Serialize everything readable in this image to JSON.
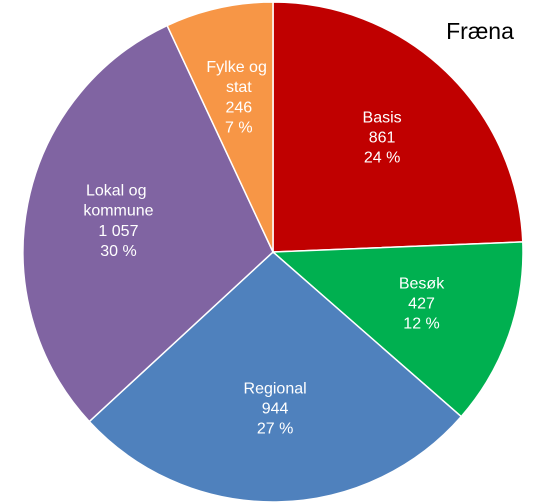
{
  "chart_data": {
    "type": "pie",
    "title": "Fræna",
    "categories": [
      "Basis",
      "Besøk",
      "Regional",
      "Lokal og kommune",
      "Fylke og stat"
    ],
    "values": [
      861,
      427,
      944,
      1057,
      246
    ],
    "value_labels": [
      "861",
      "427",
      "944",
      "1 057",
      "246"
    ],
    "percent_labels": [
      "24 %",
      "12 %",
      "27 %",
      "30 %",
      "7 %"
    ],
    "colors": [
      "#c00000",
      "#00b050",
      "#4f81bd",
      "#8064a2",
      "#f79646"
    ]
  }
}
